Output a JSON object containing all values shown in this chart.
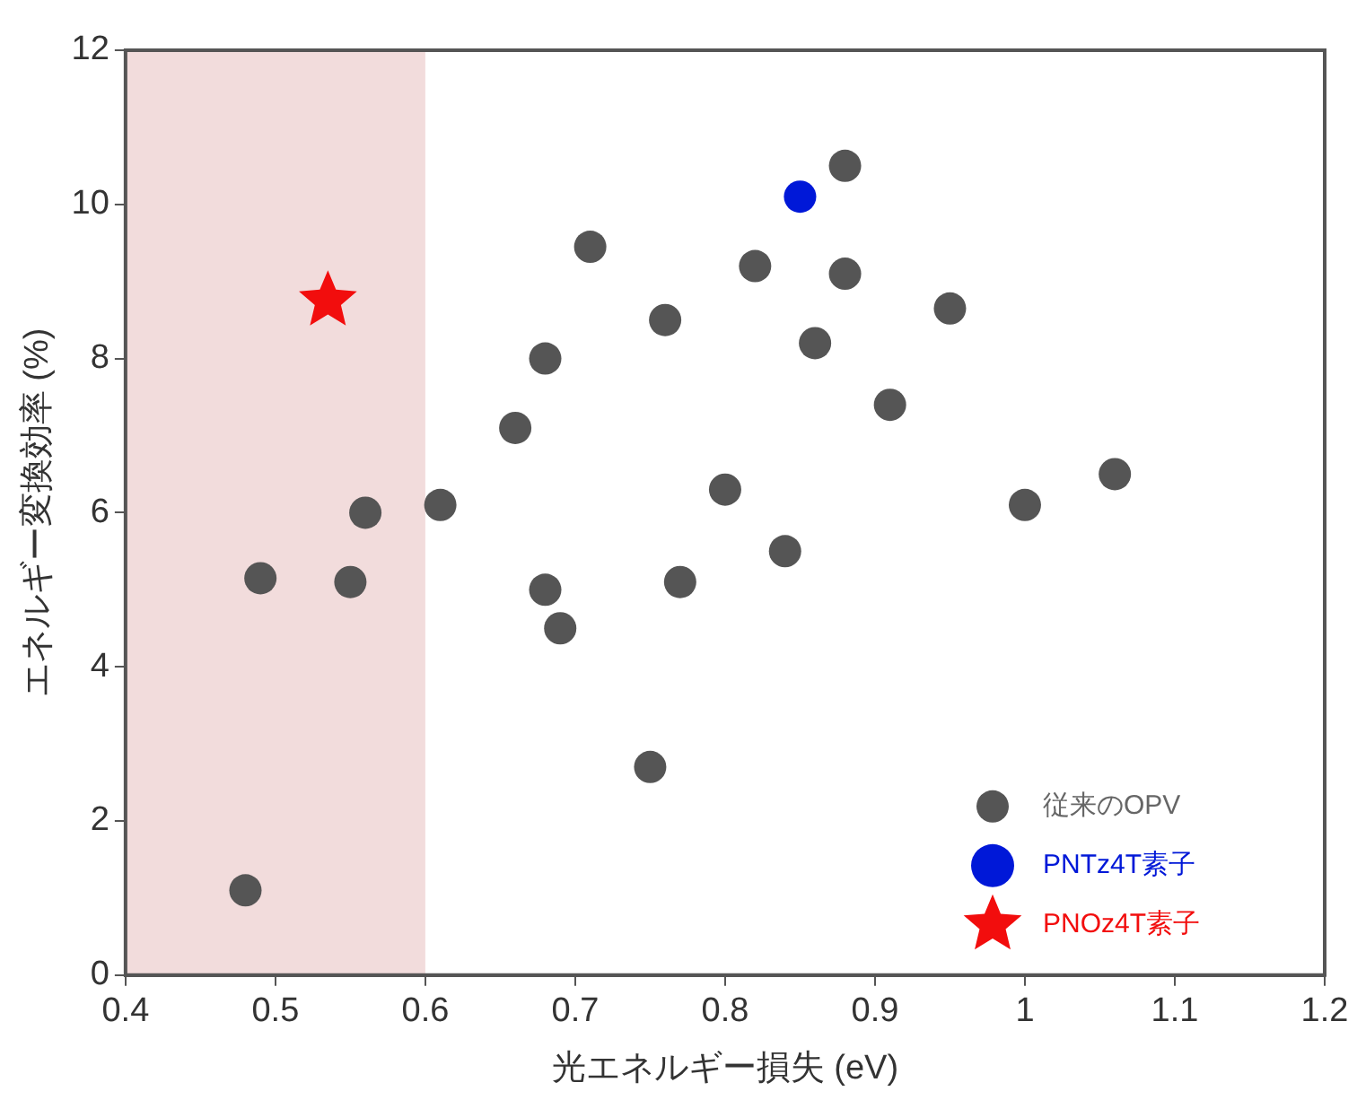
{
  "chart_data": {
    "type": "scatter",
    "xlabel": "光エネルギー損失 (eV)",
    "ylabel": "エネルギー変換効率 (%)",
    "xlim": [
      0.4,
      1.2
    ],
    "xticks": [
      0.4,
      0.5,
      0.6,
      0.7,
      0.8,
      0.9,
      1,
      1.1,
      1.2
    ],
    "ylim": [
      0,
      12
    ],
    "yticks": [
      0,
      2,
      4,
      6,
      8,
      10,
      12
    ],
    "grid": false,
    "legend": "bottom right",
    "bands": [
      {
        "axis": "x",
        "from": 0.4,
        "to": 0.6,
        "color": "#f2dcdc"
      }
    ],
    "series": [
      {
        "name": "従来のOPV",
        "color": "#555555",
        "marker": "circle",
        "x": [
          0.48,
          0.49,
          0.55,
          0.56,
          0.61,
          0.66,
          0.68,
          0.68,
          0.69,
          0.71,
          0.76,
          0.77,
          0.75,
          0.8,
          0.82,
          0.84,
          0.86,
          0.88,
          0.88,
          0.91,
          0.95,
          1,
          1.06
        ],
        "values": [
          1.1,
          5.15,
          5.1,
          6.0,
          6.1,
          7.1,
          8.0,
          5.0,
          4.5,
          9.45,
          8.5,
          5.1,
          2.7,
          6.3,
          9.2,
          5.5,
          8.2,
          9.1,
          10.5,
          7.4,
          8.65,
          6.1,
          6.5
        ]
      },
      {
        "name": "PNTz4T素子",
        "color": "#0018d8",
        "marker": "circle",
        "x": [
          0.85
        ],
        "values": [
          10.1
        ]
      },
      {
        "name": "PNOz4T素子",
        "color": "#f20d0d",
        "marker": "star",
        "x": [
          0.535
        ],
        "values": [
          8.75
        ]
      }
    ]
  }
}
